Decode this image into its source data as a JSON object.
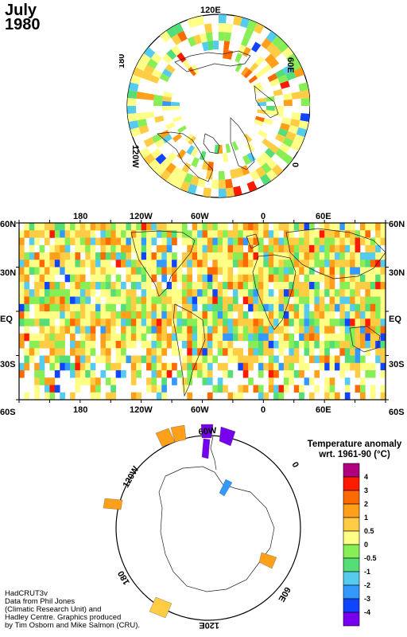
{
  "title": {
    "month": "July",
    "year": "1980"
  },
  "credits": [
    "HadCRUT3v",
    "Data from Phil Jones",
    "(Climatic Research Unit) and",
    "Hadley Centre.  Graphics produced",
    "by Tim Osborn and Mike Salmon (CRU)."
  ],
  "map": {
    "lon_top_labels": [
      "180",
      "120W",
      "60W",
      "0",
      "60E"
    ],
    "lon_bottom_labels": [
      "180",
      "120W",
      "60W",
      "0",
      "60E"
    ],
    "lat_labels": [
      "60N",
      "30N",
      "EQ",
      "30S",
      "60S"
    ]
  },
  "north_polar": {
    "labels": {
      "top": "120E",
      "right": "60E",
      "bottom_right": "0",
      "left_bottom": "120W",
      "left_top": "180"
    }
  },
  "south_polar": {
    "labels": {
      "top": "60W",
      "bottom": "120E",
      "right_top": "0",
      "right_bottom": "60E",
      "left_top": "120W",
      "left_bottom": "180"
    }
  },
  "legend": {
    "title_line1": "Temperature anomaly",
    "title_line2": "wrt. 1961-90  (°C)",
    "ticks": [
      "4",
      "3",
      "2",
      "1",
      "0.5",
      "0",
      "-0.5",
      "-1",
      "-2",
      "-3",
      "-4"
    ],
    "colors": [
      "#b0007f",
      "#ff1a00",
      "#ff6a00",
      "#ff9f1a",
      "#ffcc44",
      "#ffff88",
      "#88ee55",
      "#55dd77",
      "#55ccee",
      "#3399ff",
      "#1144ff",
      "#7700ee"
    ]
  }
}
